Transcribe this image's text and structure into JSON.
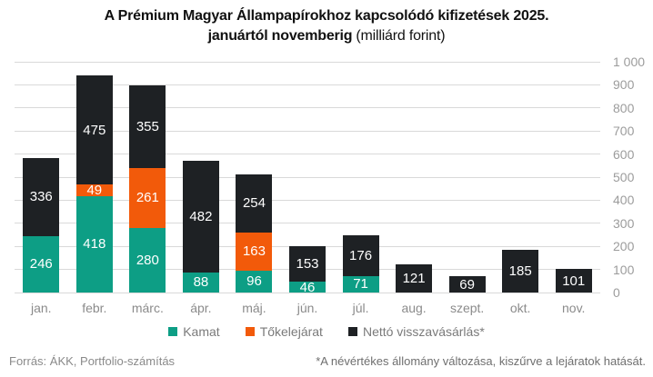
{
  "title": {
    "line1": "A Prémium Magyar Állampapírokhoz kapcsolódó kifizetések 2025.",
    "line2_bold": "januártól novemberig",
    "line2_normal": "(milliárd forint)"
  },
  "chart_data": {
    "type": "bar",
    "stacked": true,
    "title": "A Prémium Magyar Állampapírokhoz kapcsolódó kifizetések 2025. januártól novemberig (milliárd forint)",
    "categories": [
      "jan.",
      "febr.",
      "márc.",
      "ápr.",
      "máj.",
      "jún.",
      "júl.",
      "aug.",
      "szept.",
      "okt.",
      "nov."
    ],
    "series": [
      {
        "name": "Kamat",
        "key": "kamat",
        "color": "#0d9e85",
        "values": [
          246,
          418,
          280,
          88,
          96,
          46,
          71,
          0,
          0,
          0,
          0
        ]
      },
      {
        "name": "Tőkelejárat",
        "key": "tokelejarat",
        "color": "#f25a0a",
        "values": [
          0,
          49,
          261,
          0,
          163,
          0,
          0,
          0,
          0,
          0,
          0
        ]
      },
      {
        "name": "Nettó visszavásárlás*",
        "key": "netto-visszavasarlas",
        "color": "#1e2124",
        "values": [
          336,
          475,
          355,
          482,
          254,
          153,
          176,
          121,
          69,
          185,
          101
        ]
      }
    ],
    "ylim": [
      0,
      1000
    ],
    "ytick_step": 100,
    "ytick_labels": [
      "0",
      "100",
      "200",
      "300",
      "400",
      "500",
      "600",
      "700",
      "800",
      "900",
      "1 000"
    ],
    "yaxis_side": "right",
    "grid": true,
    "legend_position": "bottom",
    "value_labels": "inside-white"
  },
  "footer": {
    "source": "Forrás: ÁKK, Portfolio-számítás",
    "footnote": "*A névértékes állomány változása, kiszűrve a lejáratok hatását."
  }
}
